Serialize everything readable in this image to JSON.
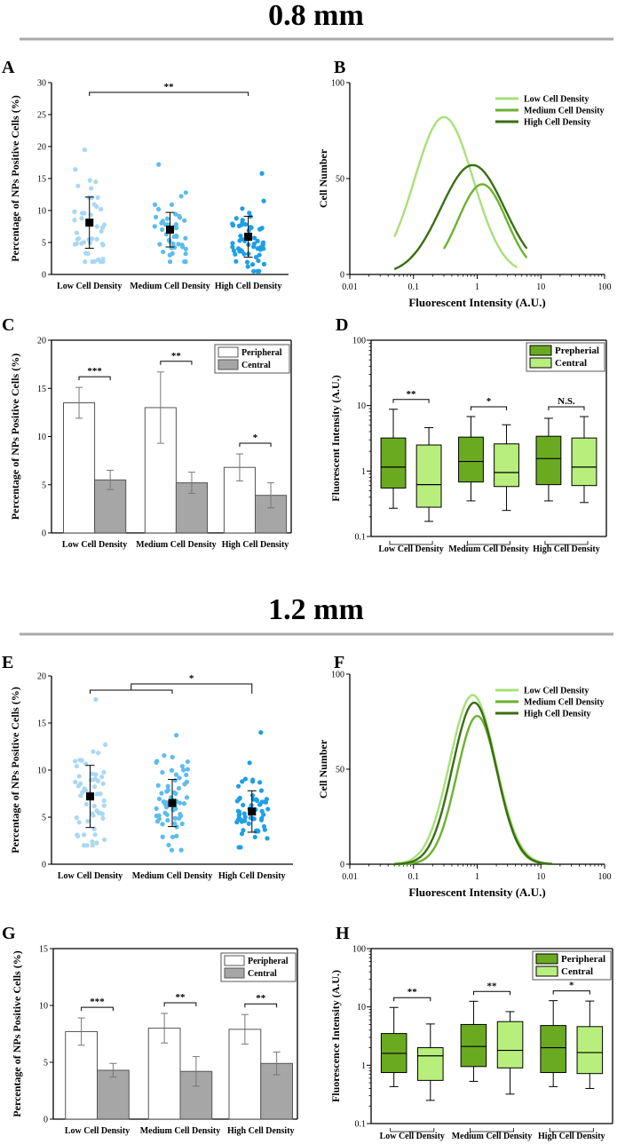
{
  "sections": [
    {
      "title": "0.8 mm"
    },
    {
      "title": "1.2 mm"
    }
  ],
  "colors": {
    "light_blue": "#a9d8f3",
    "mid_blue": "#5cbcee",
    "dark_blue": "#1f9fe6",
    "light_green": "#a8e07a",
    "mid_green": "#6bb22e",
    "dark_green": "#3b6e14",
    "box_dark": "#6aaa20",
    "box_light": "#b8ee7c",
    "bar_white": "#ffffff",
    "bar_gray": "#a6a6a6",
    "divider": "#aaaaaa"
  },
  "chart_data": [
    {
      "panel": "A",
      "type": "scatter",
      "ylabel": "Percentage of NPs Positive Cells (%)",
      "categories": [
        "Low Cell Density",
        "Medium Cell Density",
        "High Cell Density"
      ],
      "ylim": [
        0,
        30
      ],
      "yticks": [
        0,
        5,
        10,
        15,
        20,
        25,
        30
      ],
      "means": [
        8.1,
        7.0,
        5.9
      ],
      "sd": [
        4.0,
        2.7,
        3.2
      ],
      "ranges": [
        [
          2.0,
          19.5
        ],
        [
          2.0,
          17.2
        ],
        [
          0.5,
          15.8
        ]
      ],
      "point_counts": [
        45,
        45,
        60
      ],
      "significance": [
        {
          "from": 0,
          "to": 2,
          "label": "**"
        }
      ]
    },
    {
      "panel": "B",
      "type": "line",
      "xlabel": "Fluorescent Intensity (A.U.)",
      "ylabel": "Cell Number",
      "xscale": "log",
      "xlim": [
        0.01,
        100
      ],
      "ylim": [
        0,
        100
      ],
      "xticks": [
        "0.01",
        "0.1",
        "1",
        "10",
        "100"
      ],
      "yticks": [
        0,
        50,
        100
      ],
      "legend_position": "top-right",
      "series": [
        {
          "name": "Low Cell Density",
          "peak_x": 0.3,
          "peak_y": 82,
          "width": 0.46,
          "x_start": 0.05,
          "x_end": 4.2
        },
        {
          "name": "Medium Cell Density",
          "peak_x": 1.2,
          "peak_y": 47,
          "width": 0.38,
          "x_start": 0.3,
          "x_end": 6.0
        },
        {
          "name": "High Cell Density",
          "peak_x": 0.85,
          "peak_y": 57,
          "width": 0.5,
          "x_start": 0.05,
          "x_end": 6.0
        }
      ]
    },
    {
      "panel": "C",
      "type": "bar",
      "ylabel": "Percentage of NPs Positive Cells (%)",
      "categories": [
        "Low Cell Density",
        "Medium Cell Density",
        "High Cell Density"
      ],
      "ylim": [
        0,
        20
      ],
      "yticks": [
        0,
        5,
        10,
        15,
        20
      ],
      "legend_position": "top-right",
      "series": [
        {
          "name": "Peripheral",
          "values": [
            13.5,
            13.0,
            6.8
          ],
          "errors": [
            1.6,
            3.7,
            1.4
          ]
        },
        {
          "name": "Central",
          "values": [
            5.5,
            5.2,
            3.9
          ],
          "errors": [
            1.0,
            1.1,
            1.3
          ]
        }
      ],
      "significance": [
        "***",
        "**",
        "*"
      ]
    },
    {
      "panel": "D",
      "type": "box",
      "ylabel": "Fluorescent Intensity (A.U.)",
      "categories": [
        "Low Cell Density",
        "Medium Cell Density",
        "High Cell Density"
      ],
      "yscale": "log",
      "ylim": [
        0.1,
        100
      ],
      "yticks": [
        "0.1",
        "1",
        "10",
        "100"
      ],
      "legend_position": "top-right",
      "series": [
        {
          "name": "Prepherial",
          "boxes": [
            [
              0.27,
              0.55,
              1.15,
              3.2,
              8.8
            ],
            [
              0.35,
              0.68,
              1.4,
              3.3,
              6.8
            ],
            [
              0.35,
              0.62,
              1.55,
              3.4,
              6.4
            ]
          ]
        },
        {
          "name": "Central",
          "boxes": [
            [
              0.17,
              0.28,
              0.62,
              2.5,
              4.6
            ],
            [
              0.25,
              0.58,
              0.95,
              2.6,
              5.1
            ],
            [
              0.33,
              0.6,
              1.15,
              3.2,
              6.8
            ]
          ]
        }
      ],
      "significance": [
        "**",
        "*",
        "N.S."
      ]
    },
    {
      "panel": "E",
      "type": "scatter",
      "ylabel": "Percentage of NPs Positive Cells (%)",
      "categories": [
        "Low Cell Density",
        "Medium Cell Density",
        "High Cell Density"
      ],
      "ylim": [
        0,
        20
      ],
      "yticks": [
        0,
        5,
        10,
        15,
        20
      ],
      "means": [
        7.2,
        6.5,
        5.6
      ],
      "sd": [
        3.3,
        2.5,
        2.2
      ],
      "ranges": [
        [
          2.0,
          17.5
        ],
        [
          1.5,
          13.7
        ],
        [
          1.8,
          14.0
        ]
      ],
      "point_counts": [
        55,
        65,
        60
      ],
      "significance": [
        {
          "from": "0-1",
          "to": 2,
          "label": "*"
        }
      ]
    },
    {
      "panel": "F",
      "type": "line",
      "xlabel": "Fluorescent Intensity (A.U.)",
      "ylabel": "Cell Number",
      "xscale": "log",
      "xlim": [
        0.01,
        100
      ],
      "ylim": [
        0,
        100
      ],
      "xticks": [
        "0.01",
        "0.1",
        "1",
        "10",
        "100"
      ],
      "yticks": [
        0,
        50,
        100
      ],
      "legend_position": "top-right",
      "series": [
        {
          "name": "Low Cell Density",
          "peak_x": 0.85,
          "peak_y": 89,
          "width": 0.36,
          "x_start": 0.05,
          "x_end": 15
        },
        {
          "name": "Medium Cell Density",
          "peak_x": 1.0,
          "peak_y": 78,
          "width": 0.32,
          "x_start": 0.05,
          "x_end": 15
        },
        {
          "name": "High Cell Density",
          "peak_x": 0.9,
          "peak_y": 85,
          "width": 0.34,
          "x_start": 0.05,
          "x_end": 15
        }
      ]
    },
    {
      "panel": "G",
      "type": "bar",
      "ylabel": "Percentage of NPs Positive Cells (%)",
      "categories": [
        "Low Cell Density",
        "Medium Cell Density",
        "High Cell Density"
      ],
      "ylim": [
        0,
        15
      ],
      "yticks": [
        0,
        5,
        10,
        15
      ],
      "legend_position": "top-right",
      "series": [
        {
          "name": "Peripheral",
          "values": [
            7.7,
            8.0,
            7.9
          ],
          "errors": [
            1.2,
            1.3,
            1.3
          ]
        },
        {
          "name": "Central",
          "values": [
            4.3,
            4.2,
            4.9
          ],
          "errors": [
            0.6,
            1.3,
            1.0
          ]
        }
      ],
      "significance": [
        "***",
        "**",
        "**"
      ]
    },
    {
      "panel": "H",
      "type": "box",
      "ylabel": "Fluorescence Intensity (A.U.)",
      "categories": [
        "Low Cell Density",
        "Medium Cell Density",
        "High Cell Density"
      ],
      "yscale": "log",
      "ylim": [
        0.1,
        100
      ],
      "yticks": [
        "0.1",
        "1",
        "10",
        "100"
      ],
      "legend_position": "top-right",
      "series": [
        {
          "name": "Peripheral",
          "boxes": [
            [
              0.43,
              0.75,
              1.6,
              3.5,
              9.8
            ],
            [
              0.53,
              0.95,
              2.1,
              5.0,
              12.5
            ],
            [
              0.43,
              0.75,
              2.0,
              4.8,
              12.8
            ]
          ]
        },
        {
          "name": "Central",
          "boxes": [
            [
              0.25,
              0.55,
              1.45,
              2.0,
              5.1
            ],
            [
              0.32,
              0.9,
              1.8,
              5.6,
              8.3
            ],
            [
              0.4,
              0.72,
              1.65,
              4.6,
              12.6
            ]
          ]
        }
      ],
      "significance": [
        "**",
        "**",
        "*"
      ]
    }
  ]
}
